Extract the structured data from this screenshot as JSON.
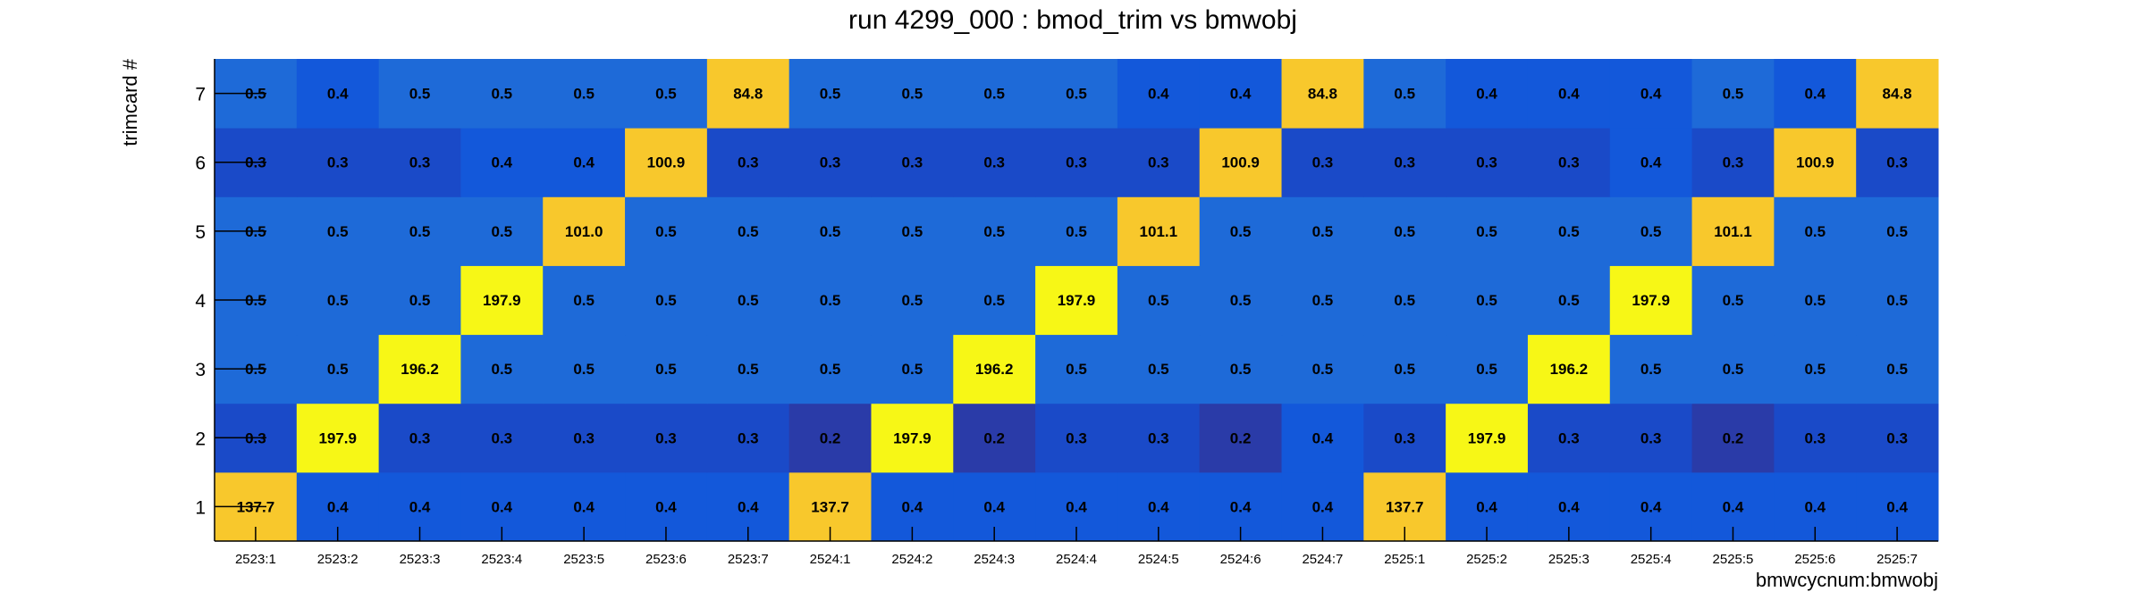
{
  "chart_data": {
    "type": "heatmap",
    "title": "run 4299_000 : bmod_trim vs bmwobj",
    "xlabel": "bmwcycnum:bmwobj",
    "ylabel": "trimcard #",
    "x_categories": [
      "2523:1",
      "2523:2",
      "2523:3",
      "2523:4",
      "2523:5",
      "2523:6",
      "2523:7",
      "2524:1",
      "2524:2",
      "2524:3",
      "2524:4",
      "2524:5",
      "2524:6",
      "2524:7",
      "2525:1",
      "2525:2",
      "2525:3",
      "2525:4",
      "2525:5",
      "2525:6",
      "2525:7"
    ],
    "y_categories": [
      "1",
      "2",
      "3",
      "4",
      "5",
      "6",
      "7"
    ],
    "values": [
      [
        137.7,
        0.4,
        0.4,
        0.4,
        0.4,
        0.4,
        0.4,
        137.7,
        0.4,
        0.4,
        0.4,
        0.4,
        0.4,
        0.4,
        137.7,
        0.4,
        0.4,
        0.4,
        0.4,
        0.4,
        0.4
      ],
      [
        0.3,
        197.9,
        0.3,
        0.3,
        0.3,
        0.3,
        0.3,
        0.2,
        197.9,
        0.2,
        0.3,
        0.3,
        0.2,
        0.4,
        0.3,
        197.9,
        0.3,
        0.3,
        0.2,
        0.3,
        0.3
      ],
      [
        0.5,
        0.5,
        196.2,
        0.5,
        0.5,
        0.5,
        0.5,
        0.5,
        0.5,
        196.2,
        0.5,
        0.5,
        0.5,
        0.5,
        0.5,
        0.5,
        196.2,
        0.5,
        0.5,
        0.5,
        0.5
      ],
      [
        0.5,
        0.5,
        0.5,
        197.9,
        0.5,
        0.5,
        0.5,
        0.5,
        0.5,
        0.5,
        197.9,
        0.5,
        0.5,
        0.5,
        0.5,
        0.5,
        0.5,
        197.9,
        0.5,
        0.5,
        0.5
      ],
      [
        0.5,
        0.5,
        0.5,
        0.5,
        101.0,
        0.5,
        0.5,
        0.5,
        0.5,
        0.5,
        0.5,
        101.1,
        0.5,
        0.5,
        0.5,
        0.5,
        0.5,
        0.5,
        101.1,
        0.5,
        0.5
      ],
      [
        0.3,
        0.3,
        0.3,
        0.4,
        0.4,
        100.9,
        0.3,
        0.3,
        0.3,
        0.3,
        0.3,
        0.3,
        100.9,
        0.3,
        0.3,
        0.3,
        0.3,
        0.4,
        0.3,
        100.9,
        0.3
      ],
      [
        0.5,
        0.4,
        0.5,
        0.5,
        0.5,
        0.5,
        84.8,
        0.5,
        0.5,
        0.5,
        0.5,
        0.4,
        0.4,
        84.8,
        0.5,
        0.4,
        0.4,
        0.4,
        0.5,
        0.4,
        84.8
      ]
    ],
    "value_format": "1 decimal",
    "grid": false,
    "legend": "none",
    "colors": {
      "very_low": "#2a3ba8",
      "low": "#1a4ac8",
      "mid": "#1358da",
      "upper_mid": "#1e6ad8",
      "bright": "#f7f716",
      "orange": "#f8c82c",
      "background": "#ffffff"
    }
  }
}
